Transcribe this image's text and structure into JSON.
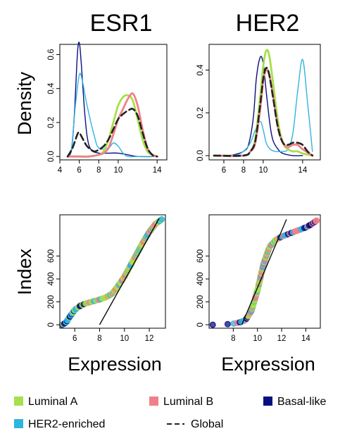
{
  "figure": {
    "column_titles": [
      "ESR1",
      "HER2"
    ],
    "ylabels": [
      "Density",
      "Index"
    ],
    "xlabel": "Expression"
  },
  "colors": {
    "Luminal A": "#a6e04a",
    "Luminal B": "#f08088",
    "Basal-like": "#0a0f80",
    "HER2-enriched": "#30b4e0",
    "Global": "#222222"
  },
  "legend": [
    {
      "label": "Luminal A",
      "color": "#a6e04a",
      "style": "square"
    },
    {
      "label": "Luminal B",
      "color": "#f08088",
      "style": "square"
    },
    {
      "label": "Basal-like",
      "color": "#0a0f80",
      "style": "square"
    },
    {
      "label": "HER2-enriched",
      "color": "#30b4e0",
      "style": "square"
    },
    {
      "label": "Global",
      "color": "#222222",
      "style": "dashed"
    }
  ],
  "chart_data": [
    {
      "id": "esr1-density",
      "type": "line",
      "title": "ESR1",
      "ylabel": "Density",
      "xlim": [
        4,
        15
      ],
      "ylim": [
        -0.02,
        0.66
      ],
      "xticks": [
        4,
        6,
        8,
        10,
        14
      ],
      "yticks": [
        0.0,
        0.2,
        0.4,
        0.6
      ],
      "ytick_labels": [
        "0.0",
        "0.2",
        "0.4",
        "0.6"
      ],
      "series": [
        {
          "name": "Basal-like",
          "x": [
            4.8,
            5.2,
            5.5,
            5.8,
            6.0,
            6.2,
            6.5,
            6.8,
            7.2,
            8.0,
            9.0,
            10.0,
            11.0,
            12.0,
            14.0
          ],
          "y": [
            0.0,
            0.04,
            0.25,
            0.6,
            0.67,
            0.55,
            0.3,
            0.12,
            0.04,
            0.02,
            0.02,
            0.02,
            0.01,
            0.0,
            0.0
          ]
        },
        {
          "name": "HER2-enriched",
          "x": [
            4.8,
            5.2,
            5.6,
            6.0,
            6.3,
            6.8,
            7.5,
            8.0,
            9.0,
            9.5,
            10.0,
            10.5,
            11.0,
            12.0,
            14.0
          ],
          "y": [
            0.0,
            0.05,
            0.3,
            0.48,
            0.45,
            0.3,
            0.13,
            0.05,
            0.05,
            0.08,
            0.06,
            0.02,
            0.0,
            0.0,
            0.0
          ]
        },
        {
          "name": "Luminal A",
          "x": [
            4.8,
            6.0,
            7.0,
            8.0,
            8.5,
            9.0,
            9.5,
            10.0,
            10.5,
            11.0,
            11.5,
            12.0,
            12.5,
            13.0,
            13.5,
            14.0
          ],
          "y": [
            0.0,
            0.0,
            0.0,
            0.01,
            0.03,
            0.1,
            0.2,
            0.3,
            0.35,
            0.36,
            0.33,
            0.22,
            0.1,
            0.03,
            0.01,
            0.0
          ]
        },
        {
          "name": "Luminal B",
          "x": [
            4.8,
            6.0,
            7.0,
            8.0,
            8.5,
            9.0,
            9.5,
            10.0,
            10.5,
            11.0,
            11.5,
            12.0,
            12.5,
            13.0,
            13.5,
            14.0
          ],
          "y": [
            0.0,
            0.0,
            0.0,
            0.01,
            0.02,
            0.05,
            0.13,
            0.22,
            0.28,
            0.34,
            0.37,
            0.3,
            0.16,
            0.05,
            0.01,
            0.0
          ]
        },
        {
          "name": "Global",
          "dashed": true,
          "x": [
            4.8,
            5.3,
            5.8,
            6.0,
            6.3,
            6.8,
            7.5,
            8.0,
            8.5,
            9.0,
            9.5,
            10.0,
            10.5,
            11.0,
            11.5,
            12.0,
            12.5,
            13.0,
            13.5,
            14.0
          ],
          "y": [
            0.0,
            0.05,
            0.13,
            0.14,
            0.11,
            0.06,
            0.03,
            0.04,
            0.06,
            0.1,
            0.16,
            0.22,
            0.25,
            0.27,
            0.28,
            0.24,
            0.14,
            0.05,
            0.01,
            0.0
          ]
        }
      ]
    },
    {
      "id": "her2-density",
      "type": "line",
      "title": "HER2",
      "xlim": [
        4.5,
        15.8
      ],
      "ylim": [
        -0.02,
        0.52
      ],
      "xticks": [
        6,
        8,
        10,
        14
      ],
      "yticks": [
        0.0,
        0.2,
        0.4
      ],
      "ytick_labels": [
        "0.0",
        "0.2",
        "0.4"
      ],
      "series": [
        {
          "name": "Basal-like",
          "x": [
            5.0,
            6.5,
            7.5,
            8.0,
            8.5,
            9.0,
            9.3,
            9.7,
            10.0,
            10.3,
            10.7,
            11.0,
            11.5,
            12.0,
            13.0,
            14.0
          ],
          "y": [
            0.0,
            0.0,
            0.01,
            0.02,
            0.05,
            0.18,
            0.36,
            0.46,
            0.43,
            0.3,
            0.14,
            0.07,
            0.03,
            0.01,
            0.0,
            0.0
          ]
        },
        {
          "name": "HER2-enriched",
          "x": [
            5.0,
            7.0,
            8.0,
            8.7,
            9.2,
            9.7,
            10.0,
            10.3,
            10.7,
            11.2,
            12.0,
            12.5,
            13.0,
            13.5,
            14.0,
            14.5,
            15.0
          ],
          "y": [
            0.0,
            0.0,
            0.02,
            0.06,
            0.12,
            0.16,
            0.12,
            0.06,
            0.03,
            0.02,
            0.02,
            0.03,
            0.1,
            0.3,
            0.45,
            0.25,
            0.02
          ]
        },
        {
          "name": "Luminal A",
          "x": [
            5.0,
            8.0,
            8.7,
            9.2,
            9.7,
            10.0,
            10.3,
            10.6,
            11.0,
            11.5,
            12.0,
            12.5,
            13.0,
            13.5,
            14.0,
            15.0
          ],
          "y": [
            0.0,
            0.0,
            0.02,
            0.08,
            0.28,
            0.42,
            0.49,
            0.47,
            0.34,
            0.16,
            0.06,
            0.03,
            0.02,
            0.02,
            0.01,
            0.0
          ]
        },
        {
          "name": "Luminal B",
          "x": [
            5.0,
            8.0,
            8.7,
            9.2,
            9.7,
            10.0,
            10.3,
            10.6,
            11.0,
            11.5,
            12.0,
            12.5,
            13.0,
            13.5,
            14.0,
            15.0
          ],
          "y": [
            0.0,
            0.0,
            0.02,
            0.06,
            0.22,
            0.35,
            0.4,
            0.38,
            0.28,
            0.13,
            0.06,
            0.04,
            0.05,
            0.05,
            0.03,
            0.0
          ]
        },
        {
          "name": "Global",
          "dashed": true,
          "x": [
            5.0,
            8.0,
            8.7,
            9.2,
            9.7,
            10.0,
            10.3,
            10.6,
            11.0,
            11.5,
            12.0,
            12.5,
            13.0,
            13.5,
            14.0,
            14.5,
            15.0
          ],
          "y": [
            0.0,
            0.0,
            0.02,
            0.07,
            0.24,
            0.36,
            0.41,
            0.38,
            0.27,
            0.13,
            0.06,
            0.05,
            0.06,
            0.06,
            0.05,
            0.02,
            0.0
          ]
        }
      ]
    },
    {
      "id": "esr1-index",
      "type": "scatter",
      "ylabel": "Index",
      "xlabel": "Expression",
      "xlim": [
        4.8,
        13.3
      ],
      "ylim": [
        -30,
        960
      ],
      "xticks": [
        6,
        8,
        10,
        12
      ],
      "yticks": [
        0,
        200,
        400,
        600
      ],
      "ytick_labels": [
        "0",
        "200",
        "400",
        "600"
      ],
      "quantile_curve": {
        "x": [
          5.0,
          5.3,
          5.6,
          6.0,
          6.5,
          7.0,
          7.5,
          8.0,
          8.5,
          9.0,
          9.5,
          10.0,
          10.5,
          11.0,
          11.5,
          12.0,
          12.5,
          13.0
        ],
        "y": [
          0,
          20,
          70,
          130,
          170,
          190,
          205,
          220,
          240,
          270,
          340,
          420,
          520,
          620,
          720,
          810,
          880,
          920
        ]
      },
      "reference_line": {
        "x": [
          8.0,
          12.8
        ],
        "y": [
          0,
          930
        ]
      }
    },
    {
      "id": "her2-index",
      "type": "scatter",
      "xlabel": "Expression",
      "xlim": [
        6.0,
        15.2
      ],
      "ylim": [
        -30,
        960
      ],
      "xticks": [
        8,
        10,
        12,
        14
      ],
      "yticks": [
        0,
        200,
        400,
        600
      ],
      "ytick_labels": [
        "0",
        "200",
        "400",
        "600"
      ],
      "quantile_curve": {
        "x": [
          6.3,
          7.0,
          7.5,
          8.0,
          8.5,
          9.0,
          9.5,
          10.0,
          10.5,
          11.0,
          11.5,
          12.0,
          12.5,
          13.0,
          13.5,
          14.0,
          14.5,
          14.9
        ],
        "y": [
          0,
          2,
          5,
          10,
          20,
          40,
          120,
          300,
          530,
          680,
          740,
          770,
          790,
          810,
          830,
          850,
          880,
          910
        ]
      },
      "reference_line": {
        "x": [
          8.7,
          12.4
        ],
        "y": [
          0,
          920
        ]
      }
    }
  ]
}
